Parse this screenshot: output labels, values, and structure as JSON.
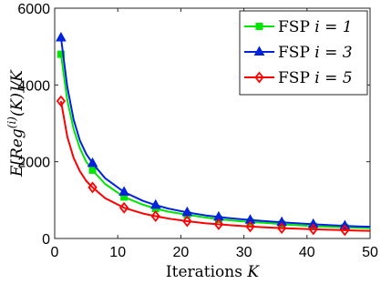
{
  "chart_data": {
    "type": "line",
    "title": "",
    "xlabel": "Iterations K",
    "xlabel_parts": {
      "text": "Iterations ",
      "var": "K"
    },
    "ylabel": "E[Reg^(i)(K)]/K",
    "ylabel_parts": {
      "pre": "E[Reg",
      "sup": "(i)",
      "post": "(K)]/K"
    },
    "xlim": [
      0,
      50
    ],
    "ylim": [
      0,
      6000
    ],
    "xticks": [
      0,
      10,
      20,
      30,
      40,
      50
    ],
    "yticks": [
      0,
      2000,
      4000,
      6000
    ],
    "grid": false,
    "legend_position": "top-right",
    "series": [
      {
        "name": "FSP i = 1",
        "name_parts": {
          "text": "FSP ",
          "var": "i = 1"
        },
        "color": "#00e600",
        "marker": "square",
        "marker_x": [
          1,
          6,
          11,
          16,
          21,
          26,
          31,
          36,
          41,
          46
        ],
        "marker_y": [
          4800,
          1780,
          1080,
          780,
          620,
          500,
          430,
          370,
          320,
          290
        ],
        "x": [
          1,
          2,
          3,
          4,
          5,
          6,
          8,
          11,
          14,
          16,
          18,
          21,
          24,
          26,
          28,
          31,
          34,
          36,
          38,
          41,
          44,
          46,
          48,
          50
        ],
        "y": [
          4800,
          3600,
          2850,
          2350,
          2000,
          1780,
          1420,
          1080,
          880,
          780,
          700,
          620,
          545,
          500,
          470,
          430,
          400,
          370,
          350,
          320,
          300,
          290,
          280,
          270
        ]
      },
      {
        "name": "FSP i = 3",
        "name_parts": {
          "text": "FSP ",
          "var": "i = 3"
        },
        "color": "#0022dd",
        "marker": "triangle",
        "marker_x": [
          1,
          6,
          11,
          16,
          21,
          26,
          31,
          36,
          41,
          46
        ],
        "marker_y": [
          5230,
          1960,
          1210,
          870,
          680,
          560,
          480,
          420,
          370,
          330
        ],
        "x": [
          1,
          2,
          3,
          4,
          5,
          6,
          8,
          11,
          14,
          16,
          18,
          21,
          24,
          26,
          28,
          31,
          34,
          36,
          38,
          41,
          44,
          46,
          48,
          50
        ],
        "y": [
          5230,
          3950,
          3100,
          2550,
          2200,
          1960,
          1570,
          1210,
          980,
          870,
          780,
          680,
          600,
          560,
          525,
          480,
          445,
          420,
          400,
          370,
          345,
          330,
          315,
          305
        ]
      },
      {
        "name": "FSP i = 5",
        "name_parts": {
          "text": "FSP ",
          "var": "i = 5"
        },
        "color": "#ff0000",
        "marker": "diamond",
        "marker_x": [
          1,
          6,
          11,
          16,
          21,
          26,
          31,
          36,
          41,
          46
        ],
        "marker_y": [
          3580,
          1330,
          800,
          580,
          450,
          370,
          310,
          270,
          240,
          215
        ],
        "x": [
          1,
          2,
          3,
          4,
          5,
          6,
          8,
          11,
          14,
          16,
          18,
          21,
          24,
          26,
          28,
          31,
          34,
          36,
          38,
          41,
          44,
          46,
          48,
          50
        ],
        "y": [
          3580,
          2650,
          2100,
          1750,
          1500,
          1330,
          1050,
          800,
          650,
          580,
          520,
          450,
          395,
          370,
          345,
          310,
          285,
          270,
          258,
          240,
          225,
          215,
          205,
          200
        ]
      }
    ]
  }
}
